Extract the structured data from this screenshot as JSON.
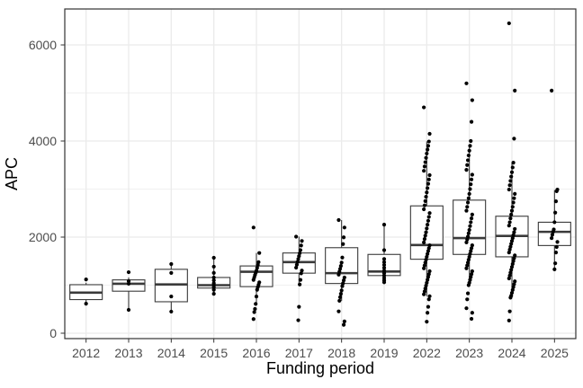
{
  "chart_data": {
    "type": "boxplot",
    "title": "",
    "xlabel": "Funding period",
    "ylabel": "APC",
    "categories": [
      "2012",
      "2013",
      "2014",
      "2015",
      "2016",
      "2017",
      "2018",
      "2019",
      "2022",
      "2023",
      "2024",
      "2025"
    ],
    "y_ticks": [
      0,
      2000,
      4000,
      6000
    ],
    "y_minor_ticks": [
      1000,
      3000,
      5000
    ],
    "ylim": [
      -112,
      6748
    ],
    "grid": true,
    "legend": "none",
    "boxes": [
      {
        "category": "2012",
        "q1": 700,
        "median": 845,
        "q3": 1010,
        "whisker_low": 645,
        "whisker_high": 1050,
        "points": [
          1120,
          615
        ]
      },
      {
        "category": "2013",
        "q1": 875,
        "median": 1030,
        "q3": 1110,
        "whisker_low": 486,
        "whisker_high": 1160,
        "points": [
          1270,
          1085,
          1030,
          486
        ]
      },
      {
        "category": "2014",
        "q1": 655,
        "median": 1015,
        "q3": 1330,
        "whisker_low": 450,
        "whisker_high": 1440,
        "points": [
          1440,
          1255,
          765,
          450
        ]
      },
      {
        "category": "2015",
        "q1": 940,
        "median": 1000,
        "q3": 1160,
        "whisker_low": 820,
        "whisker_high": 1570,
        "points": [
          1570,
          1385,
          1255,
          1160,
          1100,
          1040,
          1000,
          955,
          905,
          820
        ]
      },
      {
        "category": "2016",
        "q1": 970,
        "median": 1280,
        "q3": 1400,
        "whisker_low": 600,
        "whisker_high": 1670,
        "points": [
          2200,
          1670,
          1480,
          1420,
          1360,
          1300,
          1255,
          1210,
          1160,
          1110,
          1060,
          1010,
          960,
          905,
          765,
          610,
          505,
          440,
          295
        ]
      },
      {
        "category": "2017",
        "q1": 1250,
        "median": 1480,
        "q3": 1670,
        "whisker_low": 1015,
        "whisker_high": 2010,
        "points": [
          2010,
          1920,
          1825,
          1730,
          1665,
          1605,
          1545,
          1485,
          1425,
          1365,
          1305,
          1245,
          1110,
          1015,
          550,
          270
        ]
      },
      {
        "category": "2018",
        "q1": 1035,
        "median": 1250,
        "q3": 1780,
        "whisker_low": 675,
        "whisker_high": 2355,
        "points": [
          2355,
          2200,
          1995,
          1855,
          1575,
          1470,
          1400,
          1340,
          1280,
          1220,
          1160,
          1100,
          1040,
          980,
          890,
          820,
          750,
          675,
          455,
          245,
          175
        ]
      },
      {
        "category": "2019",
        "q1": 1200,
        "median": 1285,
        "q3": 1640,
        "whisker_low": 1060,
        "whisker_high": 2260,
        "points": [
          2260,
          1730,
          1545,
          1480,
          1420,
          1360,
          1300,
          1250,
          1200,
          1150,
          1100,
          1060
        ]
      },
      {
        "category": "2022",
        "q1": 1540,
        "median": 1835,
        "q3": 2650,
        "whisker_low": 770,
        "whisker_high": 3990,
        "points": [
          4700,
          4150,
          3990,
          3900,
          3820,
          3740,
          3650,
          3560,
          3470,
          3380,
          3290,
          3200,
          3110,
          3020,
          2930,
          2840,
          2750,
          2660,
          2580,
          2500,
          2420,
          2340,
          2260,
          2180,
          2100,
          2030,
          1960,
          1890,
          1830,
          1770,
          1710,
          1650,
          1590,
          1530,
          1470,
          1410,
          1350,
          1290,
          1230,
          1170,
          1110,
          1050,
          990,
          930,
          870,
          810,
          770,
          705,
          550,
          425,
          240
        ]
      },
      {
        "category": "2023",
        "q1": 1640,
        "median": 1980,
        "q3": 2770,
        "whisker_low": 1000,
        "whisker_high": 3900,
        "points": [
          5200,
          4850,
          4400,
          4000,
          3900,
          3800,
          3700,
          3600,
          3500,
          3400,
          3300,
          3200,
          3100,
          3000,
          2900,
          2810,
          2720,
          2630,
          2550,
          2470,
          2390,
          2310,
          2230,
          2150,
          2080,
          2010,
          1950,
          1890,
          1830,
          1770,
          1710,
          1650,
          1590,
          1530,
          1470,
          1410,
          1350,
          1290,
          1230,
          1170,
          1110,
          1050,
          1000,
          830,
          705,
          520,
          425,
          300
        ]
      },
      {
        "category": "2024",
        "q1": 1590,
        "median": 2025,
        "q3": 2435,
        "whisker_low": 740,
        "whisker_high": 3550,
        "points": [
          6450,
          5050,
          4050,
          3550,
          3450,
          3350,
          3260,
          3170,
          3080,
          2990,
          2900,
          2810,
          2720,
          2630,
          2550,
          2470,
          2390,
          2310,
          2240,
          2170,
          2100,
          2040,
          1980,
          1920,
          1860,
          1800,
          1740,
          1680,
          1620,
          1560,
          1500,
          1440,
          1380,
          1320,
          1260,
          1200,
          1140,
          1080,
          1020,
          960,
          900,
          840,
          780,
          740,
          455,
          265
        ]
      },
      {
        "category": "2025",
        "q1": 1825,
        "median": 2110,
        "q3": 2310,
        "whisker_low": 1330,
        "whisker_high": 2980,
        "points": [
          5050,
          2990,
          2955,
          2745,
          2510,
          2310,
          2160,
          2110,
          2050,
          1980,
          1900,
          1795,
          1680,
          1455,
          1330
        ]
      }
    ]
  },
  "colors": {
    "background": "#ffffff",
    "panel_border": "#333333",
    "gridline": "#ebebeb",
    "box_border": "#3a3a3a",
    "box_fill": "#ffffff",
    "median_line": "#3a3a3a",
    "point": "#000000",
    "tick_mark": "#333333",
    "tick_label": "#4d4d4d",
    "axis_title": "#000000"
  }
}
